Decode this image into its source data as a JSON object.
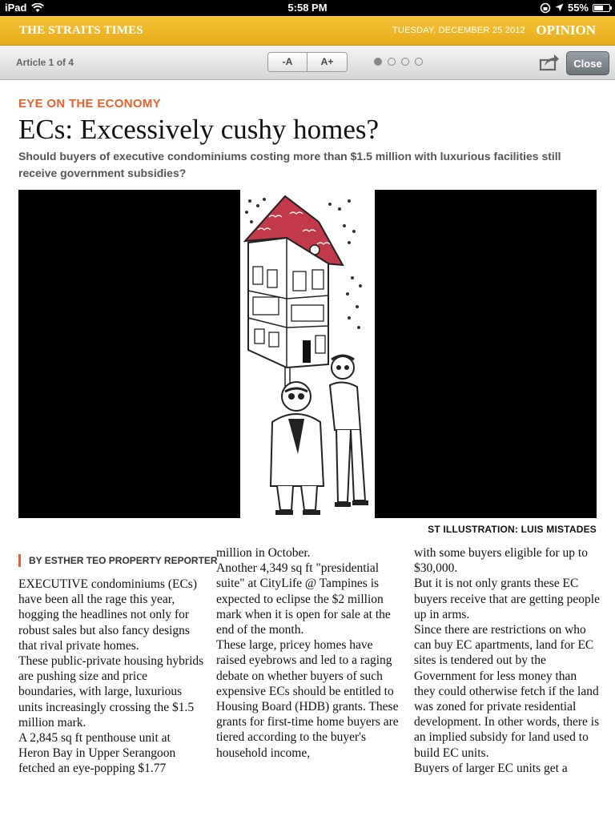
{
  "status_bar": {
    "device": "iPad",
    "time": "5:58 PM",
    "battery": "55%"
  },
  "masthead": {
    "brand": "THE STRAITS TIMES",
    "date": "TUESDAY, DECEMBER 25 2012",
    "section": "OPINION"
  },
  "toolbar": {
    "counter": "Article 1 of 4",
    "font_smaller": "-A",
    "font_larger": "A+",
    "pages_total": 4,
    "page_active": 1,
    "close_label": "Close"
  },
  "article": {
    "kicker": "EYE ON THE ECONOMY",
    "headline": "ECs: Excessively cushy homes?",
    "standfirst": "Should buyers of executive condominiums costing more than $1.5 million with luxurious facilities still receive government subsidies?",
    "caption": "ST ILLUSTRATION: LUIS MISTADES",
    "byline": "BY ESTHER TEO PROPERTY REPORTER",
    "col1": [
      "EXECUTIVE condominiums (ECs) have been all the rage this year, hogging the headlines not only for robust sales but also fancy designs that rival private homes.",
      " These public-private housing hybrids are pushing size and price boundaries, with large, luxurious units increasingly crossing the $1.5 million mark.",
      " A 2,845 sq ft penthouse unit at Heron Bay in Upper Serangoon fetched an eye-popping $1.77"
    ],
    "col2": [
      "million in October.",
      " Another 4,349 sq ft \"presidential suite\" at CityLife @ Tampines is expected to eclipse the $2 million mark when it is open for sale at the end of the month.",
      " These large, pricey homes have raised eyebrows and led to a raging debate on whether buyers of such expensive ECs should be entitled to Housing Board (HDB) grants. These grants for first-time home buyers are tiered according to the buyer's household income,"
    ],
    "col3": [
      "with some buyers eligible for up to $30,000.",
      " But it is not only grants these EC buyers receive that are getting people up in arms.",
      " Since there are restrictions on who can buy EC apartments, land for EC sites is tendered out by the Government for less money than they could otherwise fetch if the land was zoned for private residential development. In other words, there is an implied subsidy for land used to build EC units.",
      " Buyers of larger EC units get a"
    ]
  },
  "colors": {
    "masthead": "#f0b82a",
    "kicker": "#e8612c",
    "roof": "#c23a4a"
  }
}
